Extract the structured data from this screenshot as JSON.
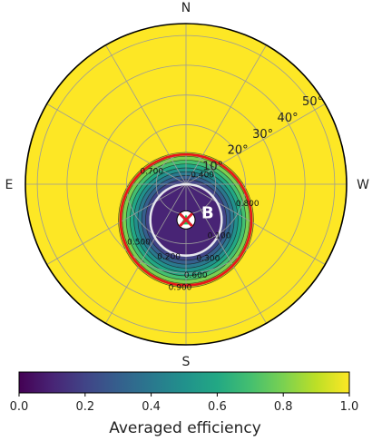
{
  "chart_data": {
    "type": "heatmap",
    "projection": "polar",
    "compass_labels": [
      {
        "text": "N",
        "azimuth_deg": 0
      },
      {
        "text": "W",
        "azimuth_deg": 90
      },
      {
        "text": "S",
        "azimuth_deg": 180
      },
      {
        "text": "E",
        "azimuth_deg": 270
      }
    ],
    "radial_tick_labels": [
      "10°",
      "20°",
      "30°",
      "40°",
      "50°"
    ],
    "radial_ticks_deg": [
      10,
      20,
      30,
      40,
      50
    ],
    "radial_max_deg": 54,
    "azimuth_grid_step_deg": 30,
    "grid": true,
    "efficiency_center": {
      "zenith_deg": 12,
      "azimuth_deg": 180
    },
    "contour_labels": [
      {
        "text": "0.700",
        "value": 0.7
      },
      {
        "text": "0.400",
        "value": 0.4
      },
      {
        "text": "0.800",
        "value": 0.8
      },
      {
        "text": "0.100",
        "value": 0.1
      },
      {
        "text": "0.300",
        "value": 0.3
      },
      {
        "text": "0.500",
        "value": 0.5
      },
      {
        "text": "0.200",
        "value": 0.2
      },
      {
        "text": "0.600",
        "value": 0.6
      },
      {
        "text": "0.900",
        "value": 0.9
      }
    ],
    "red_circle": {
      "center_zenith_deg": 12,
      "center_azimuth_deg": 180,
      "radius_deg": 22
    },
    "white_circle": {
      "center_zenith_deg": 12,
      "center_azimuth_deg": 180,
      "radius_deg": 12
    },
    "marker": {
      "label": "B",
      "zenith_deg": 12,
      "azimuth_deg": 180
    },
    "colorbar": {
      "label": "Averaged efficiency",
      "ticks": [
        "0.0",
        "0.2",
        "0.4",
        "0.6",
        "0.8",
        "1.0"
      ],
      "min": 0,
      "max": 1,
      "colormap": "viridis"
    }
  }
}
